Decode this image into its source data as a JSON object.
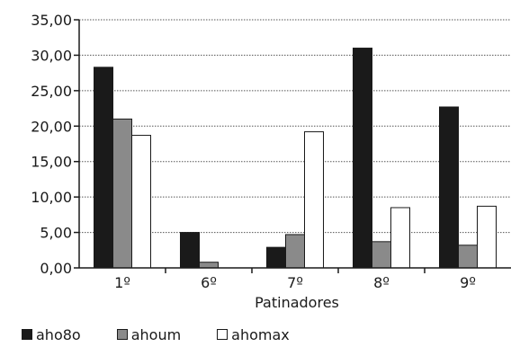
{
  "chart_data": {
    "type": "bar",
    "categories": [
      "1º",
      "6º",
      "7º",
      "8º",
      "9º"
    ],
    "series": [
      {
        "name": "aho8o",
        "color": "#1a1a1a",
        "values": [
          28.3,
          5.0,
          2.9,
          31.0,
          22.7
        ]
      },
      {
        "name": "ahoum",
        "color": "#8a8a8a",
        "values": [
          21.0,
          0.8,
          4.7,
          3.7,
          3.2
        ]
      },
      {
        "name": "ahomax",
        "color": "#ffffff",
        "values": [
          18.7,
          0.0,
          19.2,
          8.5,
          8.7
        ]
      }
    ],
    "y_ticks": [
      "0,00",
      "5,00",
      "10,00",
      "15,00",
      "20,00",
      "25,00",
      "30,00",
      "35,00"
    ],
    "ylim": [
      0,
      35
    ],
    "xlabel": "Patinadores",
    "ylabel": "",
    "title": "",
    "grid": "horizontal dotted",
    "legend_position": "bottom-left"
  }
}
